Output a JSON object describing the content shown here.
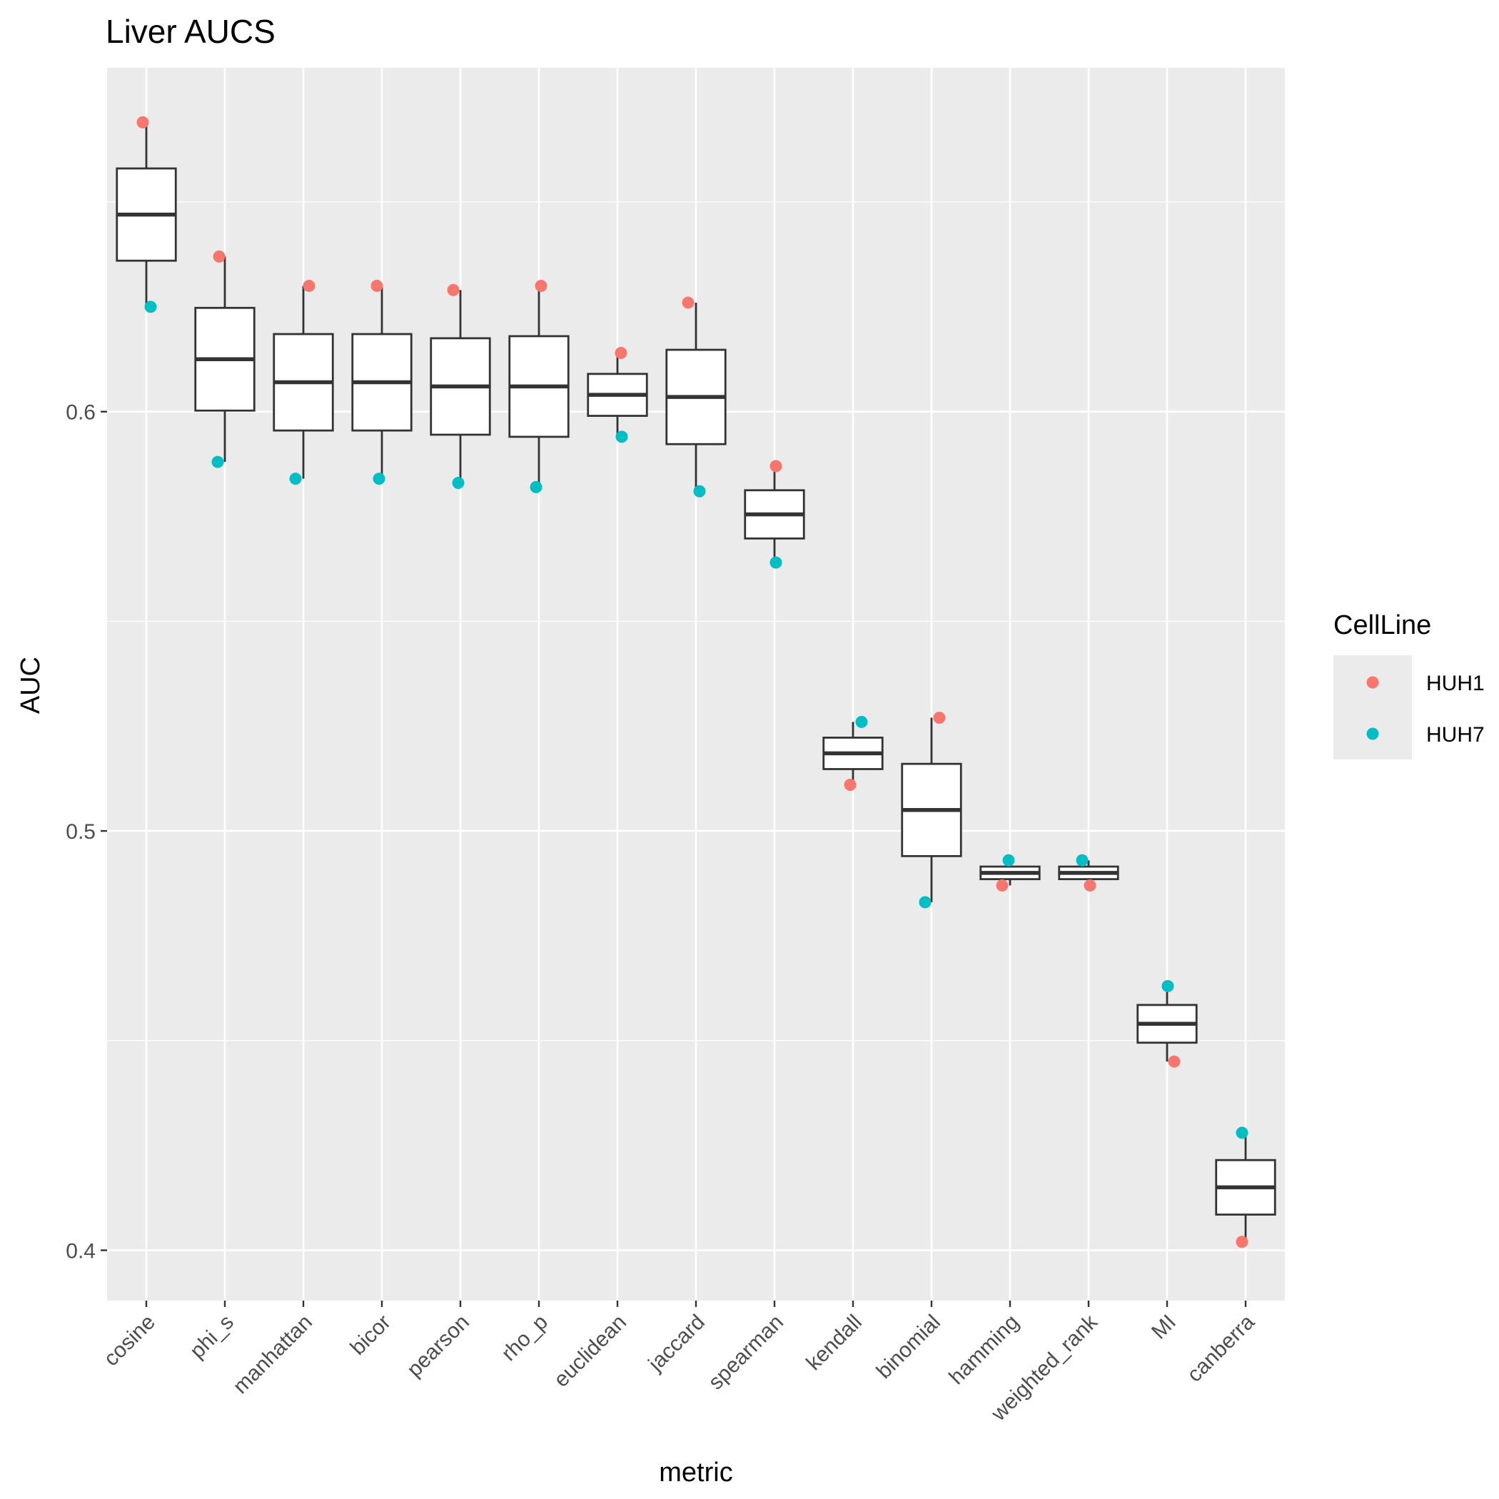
{
  "chart_data": {
    "type": "box",
    "title": "Liver AUCS",
    "xlabel": "metric",
    "ylabel": "AUC",
    "ylim": [
      0.388,
      0.682
    ],
    "yticks": [
      0.4,
      0.5,
      0.6
    ],
    "ytick_labels": [
      "0.4",
      "0.5",
      "0.6"
    ],
    "grid": true,
    "legend": {
      "title": "CellLine",
      "placement": "right",
      "entries": [
        {
          "name": "HUH1",
          "color": "#F8766D"
        },
        {
          "name": "HUH7",
          "color": "#00BFC4"
        }
      ]
    },
    "categories": [
      "cosine",
      "phi_s",
      "manhattan",
      "bicor",
      "pearson",
      "rho_p",
      "euclidean",
      "jaccard",
      "spearman",
      "kendall",
      "binomial",
      "hamming",
      "weighted_rank",
      "MI",
      "canberra"
    ],
    "series": [
      {
        "name": "HUH1",
        "color": "#F8766D",
        "values": [
          0.669,
          0.637,
          0.63,
          0.63,
          0.629,
          0.63,
          0.614,
          0.626,
          0.587,
          0.511,
          0.527,
          0.487,
          0.487,
          0.445,
          0.402
        ]
      },
      {
        "name": "HUH7",
        "color": "#00BFC4",
        "values": [
          0.625,
          0.588,
          0.584,
          0.584,
          0.583,
          0.582,
          0.594,
          0.581,
          0.564,
          0.526,
          0.483,
          0.493,
          0.493,
          0.463,
          0.428
        ]
      }
    ]
  }
}
